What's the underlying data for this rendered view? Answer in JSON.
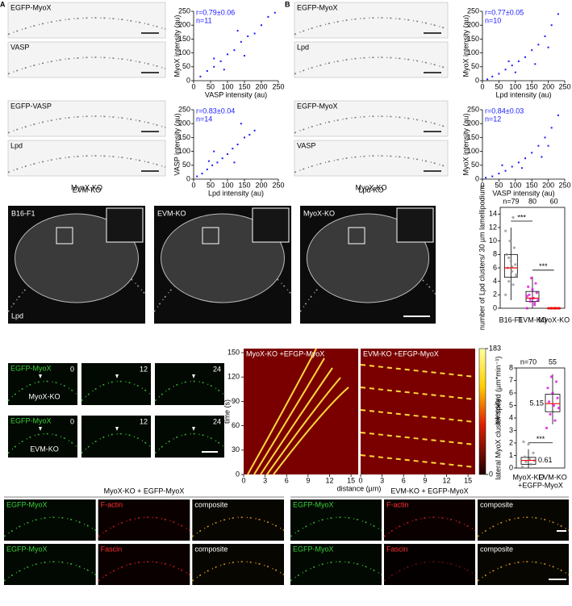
{
  "panel_labels": [
    "A",
    "B"
  ],
  "panel_a": [
    {
      "image_labels": [
        "EGFP-MyoX",
        "VASP"
      ],
      "caption": "MyoX-KO"
    },
    {
      "image_labels": [
        "EGFP-VASP",
        "Lpd"
      ],
      "caption": "EVM-KO"
    }
  ],
  "panel_b": [
    {
      "image_labels": [
        "EGFP-MyoX",
        "Lpd"
      ],
      "caption": "MyoX-KO"
    },
    {
      "image_labels": [
        "EGFP-MyoX",
        "VASP"
      ],
      "caption": "Lpd-KO"
    }
  ],
  "panel_c": {
    "image_labels": [
      "B16-F1",
      "EVM-KO",
      "MyoX-KO"
    ],
    "stain": "Lpd"
  },
  "panel_d": {
    "image_label": "EGFP-MyoX",
    "times": [
      "0",
      "12",
      "24"
    ],
    "row_labels": [
      "MyoX-KO",
      "EVM-KO"
    ],
    "kymograph_titles": [
      "MyoX-KO +EFGP-MyoX",
      "EVM-KO +EFGP-MyoX"
    ],
    "xlabel": "distance (µm)",
    "ylabel": "time (s)",
    "xlim": [
      0,
      16
    ],
    "xticks": [
      0,
      3,
      6,
      9,
      12,
      15
    ],
    "ylim": [
      0,
      155
    ],
    "yticks": [
      0,
      30,
      60,
      90,
      120,
      150
    ],
    "colorbar": {
      "label": "intensity",
      "ticks": [
        0,
        183
      ]
    }
  },
  "panel_e": {
    "groups": [
      "MyoX-KO + EGFP-MyoX",
      "EVM-KO + EGFP-MyoX"
    ],
    "rows": [
      [
        "EGFP-MyoX",
        "F-actin",
        "composite"
      ],
      [
        "EGFP-MyoX",
        "Fascin",
        "composite"
      ]
    ]
  },
  "chart_data": [
    {
      "type": "scatter",
      "xlabel": "VASP intensity (au)",
      "ylabel": "MyoX intensity (au)",
      "annotations": [
        "r=0.79±0.06",
        "n=11"
      ],
      "xlim": [
        0,
        250
      ],
      "ylim": [
        0,
        250
      ],
      "xticks": [
        0,
        50,
        100,
        150,
        200,
        250
      ],
      "yticks": [
        0,
        50,
        100,
        150,
        200,
        250
      ],
      "color": "#1a1aff",
      "x": [
        20,
        40,
        60,
        80,
        100,
        120,
        140,
        160,
        180,
        200,
        220,
        240,
        90,
        150,
        60,
        130
      ],
      "y": [
        15,
        35,
        50,
        70,
        95,
        110,
        140,
        160,
        170,
        200,
        230,
        245,
        40,
        90,
        80,
        180
      ]
    },
    {
      "type": "scatter",
      "xlabel": "Lpd intensity (au)",
      "ylabel": "VASP intensity (au)",
      "annotations": [
        "r=0.83±0.04",
        "n=14"
      ],
      "xlim": [
        0,
        250
      ],
      "ylim": [
        0,
        250
      ],
      "xticks": [
        0,
        50,
        100,
        150,
        200,
        250
      ],
      "yticks": [
        0,
        50,
        100,
        150,
        200,
        250
      ],
      "color": "#1a1aff",
      "x": [
        10,
        25,
        40,
        55,
        70,
        85,
        100,
        115,
        130,
        150,
        165,
        180,
        60,
        120,
        45,
        140
      ],
      "y": [
        10,
        20,
        35,
        50,
        60,
        75,
        90,
        110,
        125,
        150,
        160,
        175,
        100,
        60,
        65,
        200
      ]
    },
    {
      "type": "scatter",
      "xlabel": "Lpd intensity (au)",
      "ylabel": "MyoX intensity (au)",
      "annotations": [
        "r=0.77±0.05",
        "n=10"
      ],
      "xlim": [
        0,
        250
      ],
      "ylim": [
        0,
        250
      ],
      "xticks": [
        0,
        50,
        100,
        150,
        200,
        250
      ],
      "yticks": [
        0,
        50,
        100,
        150,
        200,
        250
      ],
      "color": "#1a1aff",
      "x": [
        15,
        30,
        50,
        70,
        90,
        110,
        130,
        150,
        170,
        190,
        210,
        230,
        100,
        160,
        80,
        200
      ],
      "y": [
        5,
        15,
        25,
        40,
        55,
        70,
        85,
        110,
        130,
        160,
        200,
        240,
        30,
        60,
        70,
        120
      ]
    },
    {
      "type": "scatter",
      "xlabel": "VASP intensity (au)",
      "ylabel": "MyoX intensity (au)",
      "annotations": [
        "r=0.84±0.03",
        "n=12"
      ],
      "xlim": [
        0,
        250
      ],
      "ylim": [
        0,
        250
      ],
      "xticks": [
        0,
        50,
        100,
        150,
        200,
        250
      ],
      "yticks": [
        0,
        50,
        100,
        150,
        200,
        250
      ],
      "color": "#1a1aff",
      "x": [
        10,
        30,
        50,
        70,
        90,
        110,
        130,
        150,
        170,
        190,
        210,
        230,
        120,
        180,
        60,
        200
      ],
      "y": [
        5,
        10,
        20,
        30,
        45,
        60,
        75,
        95,
        120,
        150,
        185,
        230,
        40,
        80,
        50,
        120
      ]
    },
    {
      "type": "box",
      "ylabel": "number of Lpd clusters/ 30 µm lamellipodium",
      "categories": [
        "B16-F1",
        "EVM-KO",
        "MyoX-KO"
      ],
      "n_labels": [
        "n=79",
        "80",
        "60"
      ],
      "significance": [
        "***",
        "***"
      ],
      "ylim": [
        0,
        15
      ],
      "yticks": [
        0,
        2,
        4,
        6,
        8,
        10,
        12,
        14
      ],
      "colors": [
        "#8c8c8c",
        "#e000e0",
        "#e00000"
      ],
      "median_color": "#ff0000",
      "boxes": [
        {
          "whislo": 1.2,
          "q1": 4.6,
          "med": 6,
          "q3": 8,
          "whishi": 12
        },
        {
          "whislo": 0,
          "q1": 1,
          "med": 1.5,
          "q3": 2.5,
          "whishi": 4.7
        },
        {
          "whislo": 0,
          "q1": 0,
          "med": 0,
          "q3": 0,
          "whishi": 0
        }
      ],
      "points": [
        [
          2,
          3.5,
          4,
          5,
          5.5,
          6,
          6.5,
          7,
          8,
          9,
          10,
          11.5,
          13.5,
          7.5,
          4.8,
          6.2
        ],
        [
          0,
          0.5,
          1,
          1.2,
          1.5,
          2,
          2.3,
          2.8,
          3.2,
          3.7,
          4.5,
          1.8,
          0.8,
          1.4
        ],
        [
          0,
          0,
          0,
          0,
          0,
          0,
          0,
          0
        ]
      ]
    },
    {
      "type": "box",
      "ylabel": "lateral MyoX cluster speed (µm*min⁻¹)",
      "subtitle": "+EGFP-MyoX",
      "categories": [
        "MyoX-KO",
        "EVM-KO"
      ],
      "n_labels": [
        "n=70",
        "55"
      ],
      "significance": [
        "***"
      ],
      "ylim": [
        0,
        8
      ],
      "yticks": [
        0,
        1,
        2,
        3,
        4,
        5,
        6,
        7,
        8
      ],
      "colors": [
        "#8c8c8c",
        "#e000e0"
      ],
      "median_color": "#ff0000",
      "boxes": [
        {
          "whislo": 0,
          "q1": 0.3,
          "med": 0.61,
          "q3": 0.85,
          "whishi": 1.5
        },
        {
          "whislo": 3.5,
          "q1": 4.5,
          "med": 5.15,
          "q3": 5.9,
          "whishi": 7.5
        }
      ],
      "value_labels": [
        "0.61",
        "5.15"
      ],
      "points": [
        [
          0.1,
          0.3,
          0.5,
          0.6,
          0.7,
          0.9,
          1.2,
          1.9,
          2.1
        ],
        [
          3.2,
          3.8,
          4.3,
          4.8,
          5,
          5.3,
          5.6,
          6,
          6.4,
          6.9,
          7.3
        ]
      ]
    }
  ]
}
